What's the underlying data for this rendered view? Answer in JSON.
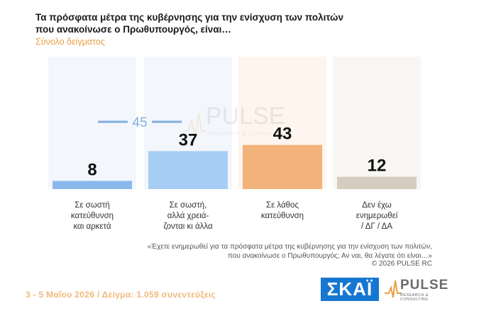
{
  "title_line1": "Τα πρόσφατα μέτρα της κυβέρνησης για την ενίσχυση των πολιτών",
  "title_line2": "που ανακοίνωσε ο Πρωθυπουργός, είναι…",
  "subtitle": "Σύνολο δείγματος",
  "chart_data": {
    "type": "bar",
    "title": "Τα πρόσφατα μέτρα της κυβέρνησης για την ενίσχυση των πολιτών που ανακοίνωσε ο Πρωθυπουργός, είναι…",
    "subtitle": "Σύνολο δείγματος",
    "categories": [
      [
        "Σε σωστή",
        "κατεύθυνση",
        "και αρκετά"
      ],
      [
        "Σε σωστή,",
        "αλλά χρειά-",
        "ζονται κι άλλα"
      ],
      [
        "Σε λάθος",
        "κατεύθυνση"
      ],
      [
        "Δεν έχω",
        "ενημερωθεί",
        "/ ΔΓ / ΔΑ"
      ]
    ],
    "values": [
      8,
      37,
      43,
      12
    ],
    "value_labels": [
      "8",
      "37",
      "43",
      "12"
    ],
    "annotation": {
      "label": "45",
      "value": 45,
      "spans_categories": [
        0,
        1
      ]
    },
    "colors": [
      "#8ab8ec",
      "#a6cdf4",
      "#f2b27c",
      "#d6cbbf"
    ],
    "background_colors": [
      "#f3f7fc",
      "#f3f7fc",
      "#fdf5ee",
      "#f8f6f3"
    ],
    "annotation_color": "#82aee0",
    "ylim": [
      0,
      100
    ],
    "xlabel": "",
    "ylabel": ""
  },
  "question": {
    "line1": "«Έχετε ενημερωθεί για τα πρόσφατα μέτρα της κυβέρνησης για την ενίσχυση των πολιτών,",
    "line2": "που ανακοίνωσε ο Πρωθυπουργός; Αν ναι, θα λέγατε ότι είναι…»"
  },
  "copyright": "©  2026  PULSE RC",
  "footer": "3 - 5  Μαΐου 2026  /  Δείγμα:  1.059 συνεντεύξεις",
  "logos": {
    "skai": "ΣΚΑΪ",
    "pulse": "PULSE",
    "pulse_sub": "RESEARCH & CONSULTING",
    "watermark": "PULSE",
    "watermark_sub": "RESEARCH & CONSULTING"
  }
}
